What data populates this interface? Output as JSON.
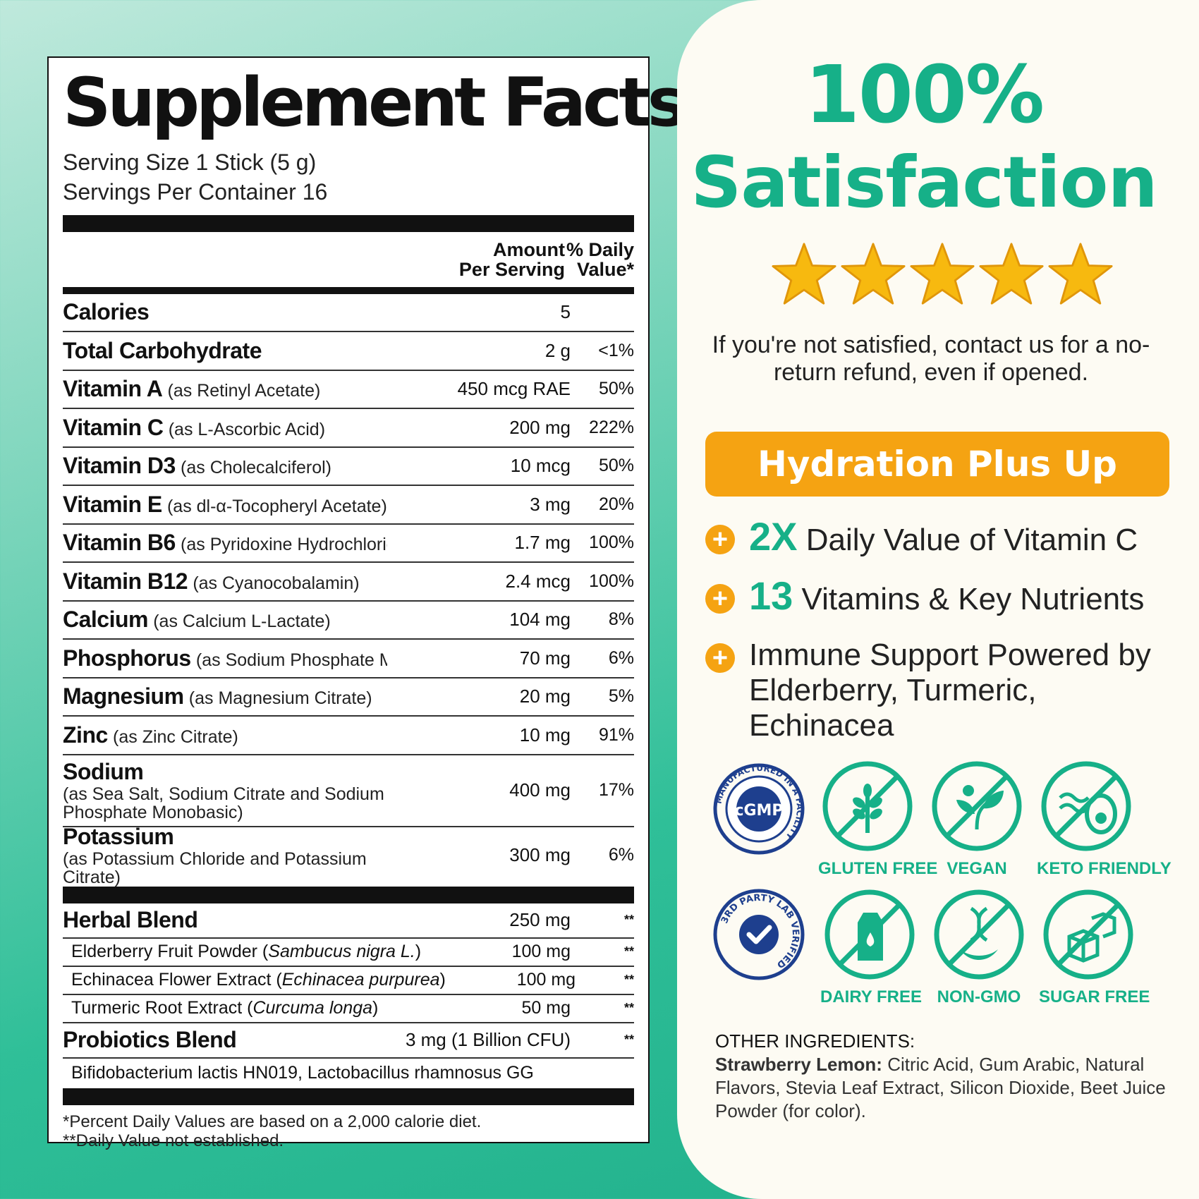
{
  "facts": {
    "title": "Supplement Facts",
    "serving_size": "Serving Size 1 Stick (5 g)",
    "servings_per_container": "Servings Per Container 16",
    "header_amount_line1": "Amount",
    "header_amount_line2": "Per Serving",
    "header_dv_line1": "% Daily",
    "header_dv_line2": "Value*",
    "rows": [
      {
        "name": "Calories",
        "detail": "",
        "amount": "5",
        "dv": ""
      },
      {
        "name": "Total Carbohydrate",
        "detail": "",
        "amount": "2 g",
        "dv": "<1%"
      },
      {
        "name": "Vitamin A",
        "detail": "(as Retinyl Acetate)",
        "amount": "450 mcg RAE",
        "dv": "50%"
      },
      {
        "name": "Vitamin C",
        "detail": "(as L-Ascorbic Acid)",
        "amount": "200 mg",
        "dv": "222%"
      },
      {
        "name": "Vitamin D3",
        "detail": "(as Cholecalciferol)",
        "amount": "10 mcg",
        "dv": "50%"
      },
      {
        "name": "Vitamin E",
        "detail": "(as dl-α-Tocopheryl Acetate)",
        "amount": "3 mg",
        "dv": "20%"
      },
      {
        "name": "Vitamin B6",
        "detail": "(as Pyridoxine Hydrochloride)",
        "amount": "1.7 mg",
        "dv": "100%"
      },
      {
        "name": "Vitamin B12",
        "detail": "(as Cyanocobalamin)",
        "amount": "2.4 mcg",
        "dv": "100%"
      },
      {
        "name": "Calcium",
        "detail": "(as Calcium L-Lactate)",
        "amount": "104 mg",
        "dv": "8%"
      },
      {
        "name": "Phosphorus",
        "detail": "(as Sodium Phosphate Monobasic)",
        "amount": "70 mg",
        "dv": "6%"
      },
      {
        "name": "Magnesium",
        "detail": "(as Magnesium Citrate)",
        "amount": "20 mg",
        "dv": "5%"
      },
      {
        "name": "Zinc",
        "detail": "(as Zinc Citrate)",
        "amount": "10 mg",
        "dv": "91%"
      }
    ],
    "sodium": {
      "name": "Sodium",
      "detail": "(as Sea Salt, Sodium Citrate and Sodium Phosphate Monobasic)",
      "amount": "400 mg",
      "dv": "17%"
    },
    "potassium": {
      "name": "Potassium",
      "detail": "(as Potassium Chloride and Potassium Citrate)",
      "amount": "300 mg",
      "dv": "6%"
    },
    "herbal": {
      "name": "Herbal Blend",
      "amount": "250 mg",
      "dv": "**"
    },
    "herbal_items": [
      {
        "name": "Elderberry Fruit Powder",
        "latin": "Sambucus nigra L.",
        "amount": "100 mg",
        "dv": "**"
      },
      {
        "name": "Echinacea Flower Extract",
        "latin": "Echinacea purpurea",
        "amount": "100 mg",
        "dv": "**"
      },
      {
        "name": "Turmeric Root Extract",
        "latin": "Curcuma longa",
        "amount": "50 mg",
        "dv": "**"
      }
    ],
    "probiotics": {
      "name": "Probiotics Blend",
      "amount": "3 mg (1 Billion CFU)",
      "dv": "**"
    },
    "probiotics_strains": "Bifidobacterium lactis HN019, Lactobacillus rhamnosus GG",
    "footnote1": "*Percent Daily Values are based on a 2,000 calorie diet.",
    "footnote2": "**Daily Value not established."
  },
  "card": {
    "headline1": "100%",
    "headline2": "Satisfaction",
    "stars": 5,
    "promise": "If you're not satisfied, contact us for a no-return refund, even if opened.",
    "pill": "Hydration Plus Up",
    "benefits": [
      {
        "highlight": "2X",
        "text": "Daily Value of Vitamin C"
      },
      {
        "highlight": "13",
        "text": "Vitamins & Key Nutrients"
      },
      {
        "highlight": "",
        "text": "Immune Support Powered by Elderberry, Turmeric, Echinacea"
      }
    ],
    "badges": [
      {
        "label": "",
        "icon": "cgmp-seal-icon",
        "seal_text": "cGMP",
        "ring_text": "MANUFACTURED IN A FACILITY"
      },
      {
        "label": "GLUTEN FREE",
        "icon": "wheat-icon"
      },
      {
        "label": "VEGAN",
        "icon": "leaf-icon"
      },
      {
        "label": "KETO FRIENDLY",
        "icon": "avocado-icon"
      },
      {
        "label": "",
        "icon": "lab-verified-seal-icon",
        "ring_text": "3RD PARTY LAB VERIFIED"
      },
      {
        "label": "DAIRY FREE",
        "icon": "milk-carton-icon"
      },
      {
        "label": "NON-GMO",
        "icon": "dna-icon"
      },
      {
        "label": "SUGAR FREE",
        "icon": "sugar-cube-icon"
      }
    ],
    "other_heading": "OTHER INGREDIENTS:",
    "other_flavor": "Strawberry Lemon:",
    "other_text": "Citric Acid, Gum Arabic, Natural Flavors, Stevia Leaf Extract, Silicon Dioxide, Beet Juice Powder (for color)."
  },
  "colors": {
    "teal": "#16b088",
    "orange": "#f5a312",
    "card_bg": "#fdfbf3",
    "star": "#f7b90f"
  }
}
